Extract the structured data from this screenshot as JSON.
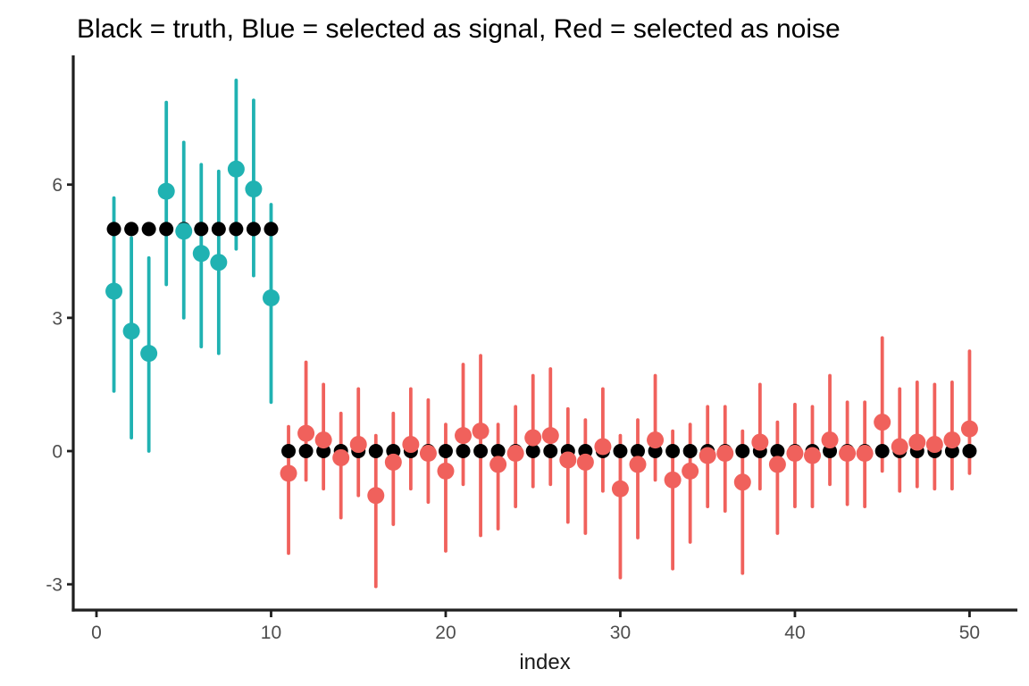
{
  "chart_data": {
    "type": "pointrange",
    "title": "Black = truth, Blue = selected as signal, Red = selected as noise",
    "xlabel": "index",
    "ylabel": "",
    "x_ticks": [
      0,
      10,
      20,
      30,
      40,
      50
    ],
    "y_ticks": [
      -3,
      0,
      3,
      6
    ],
    "xlim": [
      -1.33,
      52.74
    ],
    "ylim": [
      -3.58,
      8.91
    ],
    "grid": "off",
    "legend_position": "none",
    "axis_color": "#1f1f1f",
    "tick_label_color": "#4d4d4d",
    "background": "#ffffff",
    "series": [
      {
        "name": "truth",
        "type": "scatter",
        "color": "#000000",
        "x": [
          1,
          2,
          3,
          4,
          5,
          6,
          7,
          8,
          9,
          10,
          11,
          12,
          13,
          14,
          15,
          16,
          17,
          18,
          19,
          20,
          21,
          22,
          23,
          24,
          25,
          26,
          27,
          28,
          29,
          30,
          31,
          32,
          33,
          34,
          35,
          36,
          37,
          38,
          39,
          40,
          41,
          42,
          43,
          44,
          45,
          46,
          47,
          48,
          49,
          50
        ],
        "y": [
          5,
          5,
          5,
          5,
          5,
          5,
          5,
          5,
          5,
          5,
          0,
          0,
          0,
          0,
          0,
          0,
          0,
          0,
          0,
          0,
          0,
          0,
          0,
          0,
          0,
          0,
          0,
          0,
          0,
          0,
          0,
          0,
          0,
          0,
          0,
          0,
          0,
          0,
          0,
          0,
          0,
          0,
          0,
          0,
          0,
          0,
          0,
          0,
          0,
          0
        ]
      },
      {
        "name": "selected as signal",
        "type": "pointrange",
        "color": "#20b2b2",
        "points": [
          [
            1,
            3.6,
            1.35,
            5.7
          ],
          [
            2,
            2.7,
            0.3,
            4.8
          ],
          [
            3,
            2.2,
            0.0,
            4.35
          ],
          [
            4,
            5.85,
            3.75,
            7.85
          ],
          [
            5,
            4.95,
            3.0,
            6.95
          ],
          [
            6,
            4.45,
            2.35,
            6.45
          ],
          [
            7,
            4.25,
            2.2,
            6.3
          ],
          [
            8,
            6.35,
            4.55,
            8.35
          ],
          [
            9,
            5.9,
            3.95,
            7.9
          ],
          [
            10,
            3.45,
            1.1,
            5.55
          ]
        ]
      },
      {
        "name": "selected as noise",
        "type": "pointrange",
        "color": "#f0615c",
        "points": [
          [
            11,
            -0.5,
            -2.3,
            0.55
          ],
          [
            12,
            0.4,
            -0.65,
            2.0
          ],
          [
            13,
            0.25,
            -0.85,
            1.5
          ],
          [
            14,
            -0.15,
            -1.5,
            0.85
          ],
          [
            15,
            0.15,
            -1.0,
            1.4
          ],
          [
            16,
            -1.0,
            -3.05,
            0.35
          ],
          [
            17,
            -0.25,
            -1.65,
            0.85
          ],
          [
            18,
            0.15,
            -0.85,
            1.4
          ],
          [
            19,
            -0.05,
            -1.15,
            1.15
          ],
          [
            20,
            -0.45,
            -2.25,
            0.6
          ],
          [
            21,
            0.35,
            -0.75,
            1.95
          ],
          [
            22,
            0.45,
            -1.9,
            2.15
          ],
          [
            23,
            -0.3,
            -1.75,
            0.6
          ],
          [
            24,
            -0.05,
            -1.25,
            1.0
          ],
          [
            25,
            0.3,
            -0.8,
            1.7
          ],
          [
            26,
            0.35,
            -0.75,
            1.85
          ],
          [
            27,
            -0.2,
            -1.6,
            0.95
          ],
          [
            28,
            -0.25,
            -1.85,
            0.7
          ],
          [
            29,
            0.1,
            -0.9,
            1.4
          ],
          [
            30,
            -0.85,
            -2.85,
            0.35
          ],
          [
            31,
            -0.3,
            -1.95,
            0.7
          ],
          [
            32,
            0.25,
            -0.65,
            1.7
          ],
          [
            33,
            -0.65,
            -2.65,
            0.45
          ],
          [
            34,
            -0.45,
            -2.05,
            0.6
          ],
          [
            35,
            -0.1,
            -1.25,
            1.0
          ],
          [
            36,
            -0.05,
            -1.35,
            1.0
          ],
          [
            37,
            -0.7,
            -2.75,
            0.45
          ],
          [
            38,
            0.2,
            -0.85,
            1.5
          ],
          [
            39,
            -0.3,
            -1.85,
            0.65
          ],
          [
            40,
            -0.05,
            -1.25,
            1.05
          ],
          [
            41,
            -0.1,
            -1.25,
            1.0
          ],
          [
            42,
            0.25,
            -0.75,
            1.7
          ],
          [
            43,
            -0.05,
            -1.2,
            1.1
          ],
          [
            44,
            -0.05,
            -1.25,
            1.1
          ],
          [
            45,
            0.65,
            -0.45,
            2.55
          ],
          [
            46,
            0.1,
            -0.9,
            1.4
          ],
          [
            47,
            0.2,
            -0.8,
            1.55
          ],
          [
            48,
            0.15,
            -0.85,
            1.5
          ],
          [
            49,
            0.25,
            -0.85,
            1.55
          ],
          [
            50,
            0.5,
            -0.5,
            2.25
          ]
        ]
      }
    ]
  }
}
